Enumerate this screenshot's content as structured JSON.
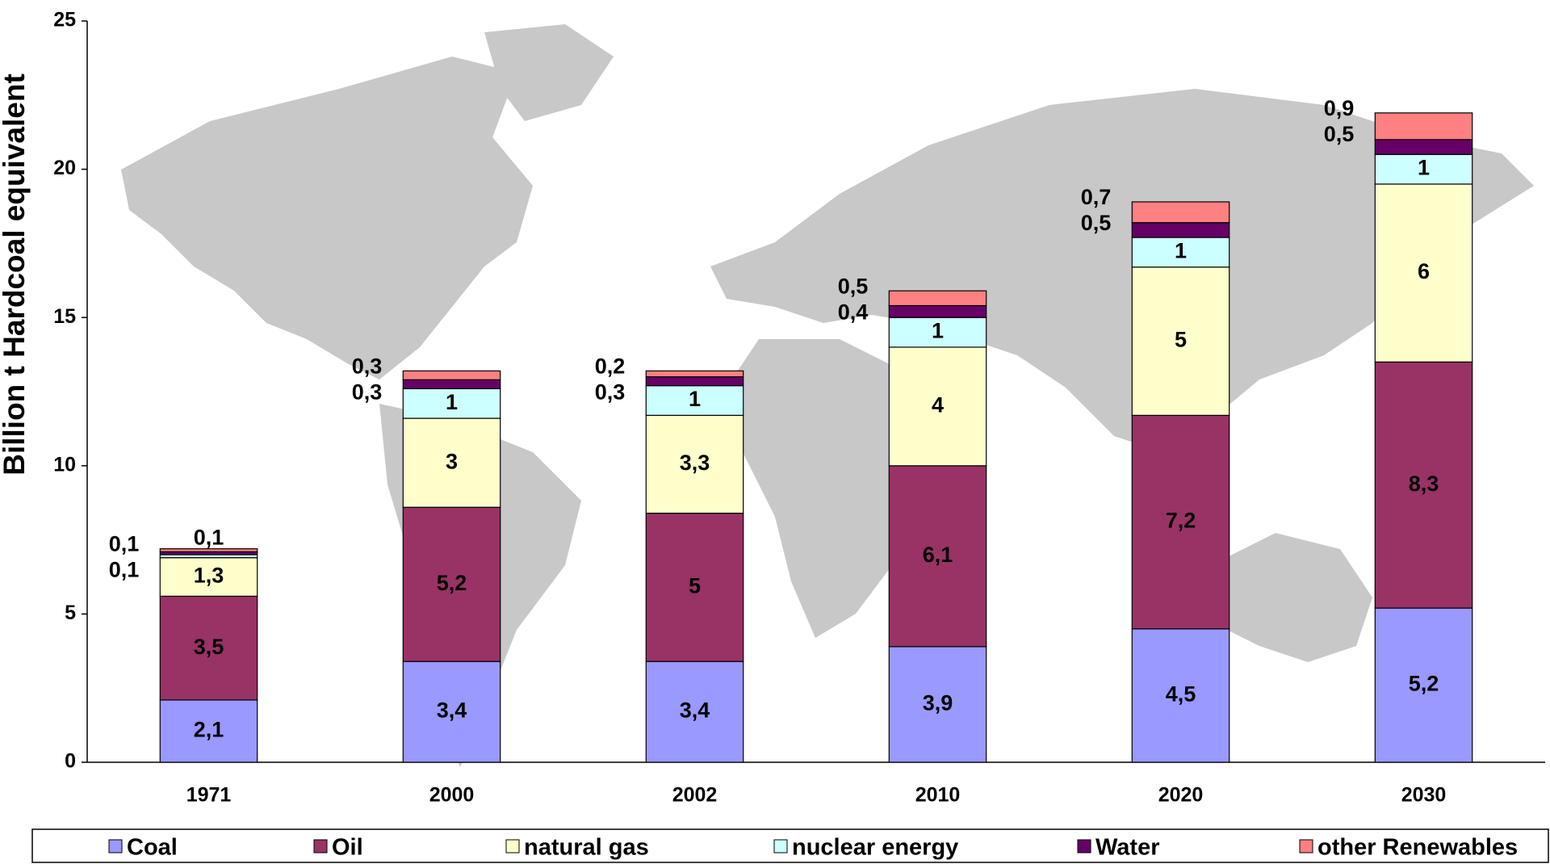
{
  "chart_data": {
    "type": "stacked_bar",
    "y_label": "Billion t Hardcoal equivalent",
    "categories": [
      "1971",
      "2000",
      "2002",
      "2010",
      "2020",
      "2030"
    ],
    "series": [
      {
        "name": "Coal",
        "color": "#9999ff",
        "values": [
          2.1,
          3.4,
          3.4,
          3.9,
          4.5,
          5.2
        ],
        "value_labels": [
          "2,1",
          "3,4",
          "3,4",
          "3,9",
          "4,5",
          "5,2"
        ]
      },
      {
        "name": "Oil",
        "color": "#993366",
        "values": [
          3.5,
          5.2,
          5,
          6.1,
          7.2,
          8.3
        ],
        "value_labels": [
          "3,5",
          "5,2",
          "5",
          "6,1",
          "7,2",
          "8,3"
        ]
      },
      {
        "name": "natural gas",
        "color": "#ffffcc",
        "values": [
          1.3,
          3,
          3.3,
          4,
          5,
          6
        ],
        "value_labels": [
          "1,3",
          "3",
          "3,3",
          "4",
          "5",
          "6"
        ]
      },
      {
        "name": "nuclear energy",
        "color": "#ccffff",
        "values": [
          0.1,
          1,
          1,
          1,
          1,
          1
        ],
        "value_labels": [
          "0,1",
          "1",
          "1",
          "1",
          "1",
          "1"
        ]
      },
      {
        "name": "Water",
        "color": "#660066",
        "values": [
          0.1,
          0.3,
          0.3,
          0.4,
          0.5,
          0.5
        ],
        "value_labels": [
          "0,1",
          "0,3",
          "0,3",
          "0,4",
          "0,5",
          "0,5"
        ]
      },
      {
        "name": "other Renewables",
        "color": "#ff8080",
        "values": [
          0.1,
          0.3,
          0.2,
          0.5,
          0.7,
          0.9
        ],
        "value_labels": [
          "0,1",
          "0,3",
          "0,2",
          "0,5",
          "0,7",
          "0,9"
        ]
      }
    ],
    "ylim": [
      0,
      25
    ],
    "yticks": [
      0,
      5,
      10,
      15,
      20,
      25
    ],
    "legend": "bottom"
  }
}
